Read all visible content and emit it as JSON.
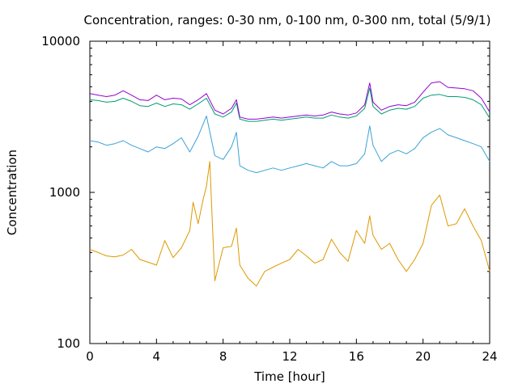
{
  "chart_data": {
    "type": "line",
    "title": "Concentration, ranges: 0-30 nm, 0-100 nm, 0-300 nm, total (5/9/1)",
    "xlabel": "Time [hour]",
    "ylabel": "Concentration",
    "xlim": [
      0,
      24
    ],
    "ylim": [
      100,
      10000
    ],
    "y_scale": "log",
    "x_ticks": [
      "0",
      "4",
      "8",
      "12",
      "16",
      "20",
      "24"
    ],
    "y_ticks": [
      "100",
      "1000",
      "10000"
    ],
    "grid": false,
    "legend": "none",
    "series": [
      {
        "color": "#dd9900",
        "x": [
          0,
          0.5,
          1,
          1.5,
          2,
          2.5,
          3,
          3.5,
          4,
          4.5,
          5,
          5.5,
          6,
          6.2,
          6.5,
          6.8,
          7,
          7.2,
          7.5,
          8,
          8.5,
          8.8,
          9,
          9.5,
          10,
          10.5,
          11,
          11.5,
          12,
          12.5,
          13,
          13.5,
          14,
          14.5,
          15,
          15.5,
          16,
          16.5,
          16.8,
          17,
          17.5,
          18,
          18.5,
          19,
          19.5,
          20,
          20.5,
          21,
          21.5,
          22,
          22.5,
          23,
          23.5,
          24
        ],
        "y": [
          420,
          400,
          380,
          375,
          385,
          420,
          360,
          345,
          330,
          480,
          370,
          430,
          560,
          860,
          620,
          900,
          1100,
          1600,
          260,
          430,
          440,
          580,
          330,
          270,
          240,
          300,
          320,
          340,
          360,
          420,
          380,
          340,
          360,
          490,
          400,
          350,
          560,
          460,
          700,
          520,
          420,
          460,
          360,
          300,
          360,
          460,
          820,
          960,
          600,
          620,
          780,
          600,
          480,
          300
        ]
      },
      {
        "color": "#3ba2d6",
        "x": [
          0,
          0.5,
          1,
          1.5,
          2,
          2.5,
          3,
          3.5,
          4,
          4.5,
          5,
          5.5,
          6,
          6.5,
          7,
          7.5,
          8,
          8.5,
          8.8,
          9,
          9.5,
          10,
          10.5,
          11,
          11.5,
          12,
          12.5,
          13,
          13.5,
          14,
          14.5,
          15,
          15.5,
          16,
          16.5,
          16.8,
          17,
          17.5,
          18,
          18.5,
          19,
          19.5,
          20,
          20.5,
          21,
          21.5,
          22,
          22.5,
          23,
          23.5,
          24
        ],
        "y": [
          2200,
          2150,
          2050,
          2100,
          2200,
          2050,
          1950,
          1850,
          2000,
          1950,
          2100,
          2300,
          1850,
          2350,
          3200,
          1750,
          1650,
          2000,
          2500,
          1500,
          1400,
          1350,
          1400,
          1450,
          1400,
          1450,
          1500,
          1550,
          1500,
          1450,
          1600,
          1500,
          1500,
          1550,
          1800,
          2750,
          2050,
          1600,
          1800,
          1900,
          1800,
          1950,
          2300,
          2500,
          2650,
          2400,
          2300,
          2200,
          2100,
          2000,
          1600
        ]
      },
      {
        "color": "#009e73",
        "x": [
          0,
          0.5,
          1,
          1.5,
          2,
          2.5,
          3,
          3.5,
          4,
          4.5,
          5,
          5.5,
          6,
          6.5,
          7,
          7.5,
          8,
          8.5,
          8.8,
          9,
          9.5,
          10,
          10.5,
          11,
          11.5,
          12,
          12.5,
          13,
          13.5,
          14,
          14.5,
          15,
          15.5,
          16,
          16.5,
          16.8,
          17,
          17.5,
          18,
          18.5,
          19,
          19.5,
          20,
          20.5,
          21,
          21.5,
          22,
          22.5,
          23,
          23.5,
          24
        ],
        "y": [
          4100,
          4050,
          3950,
          4000,
          4200,
          4000,
          3750,
          3700,
          3900,
          3700,
          3850,
          3800,
          3550,
          3850,
          4200,
          3300,
          3150,
          3400,
          3900,
          3050,
          2950,
          2950,
          3000,
          3050,
          3000,
          3050,
          3100,
          3150,
          3100,
          3100,
          3250,
          3150,
          3100,
          3200,
          3600,
          4900,
          3700,
          3300,
          3500,
          3600,
          3550,
          3700,
          4200,
          4400,
          4450,
          4300,
          4300,
          4250,
          4100,
          3800,
          3100
        ]
      },
      {
        "color": "#9400d3",
        "x": [
          0,
          0.5,
          1,
          1.5,
          2,
          2.5,
          3,
          3.5,
          4,
          4.5,
          5,
          5.5,
          6,
          6.5,
          7,
          7.5,
          8,
          8.5,
          8.8,
          9,
          9.5,
          10,
          10.5,
          11,
          11.5,
          12,
          12.5,
          13,
          13.5,
          14,
          14.5,
          15,
          15.5,
          16,
          16.5,
          16.8,
          17,
          17.5,
          18,
          18.5,
          19,
          19.5,
          20,
          20.5,
          21,
          21.5,
          22,
          22.5,
          23,
          23.5,
          24
        ],
        "y": [
          4500,
          4400,
          4300,
          4400,
          4700,
          4400,
          4100,
          4050,
          4400,
          4100,
          4200,
          4150,
          3800,
          4100,
          4500,
          3500,
          3300,
          3600,
          4100,
          3150,
          3050,
          3050,
          3100,
          3150,
          3100,
          3150,
          3200,
          3250,
          3200,
          3250,
          3400,
          3300,
          3250,
          3350,
          3800,
          5300,
          3950,
          3500,
          3700,
          3800,
          3750,
          3950,
          4600,
          5300,
          5400,
          4950,
          4900,
          4850,
          4700,
          4200,
          3400
        ]
      }
    ]
  }
}
